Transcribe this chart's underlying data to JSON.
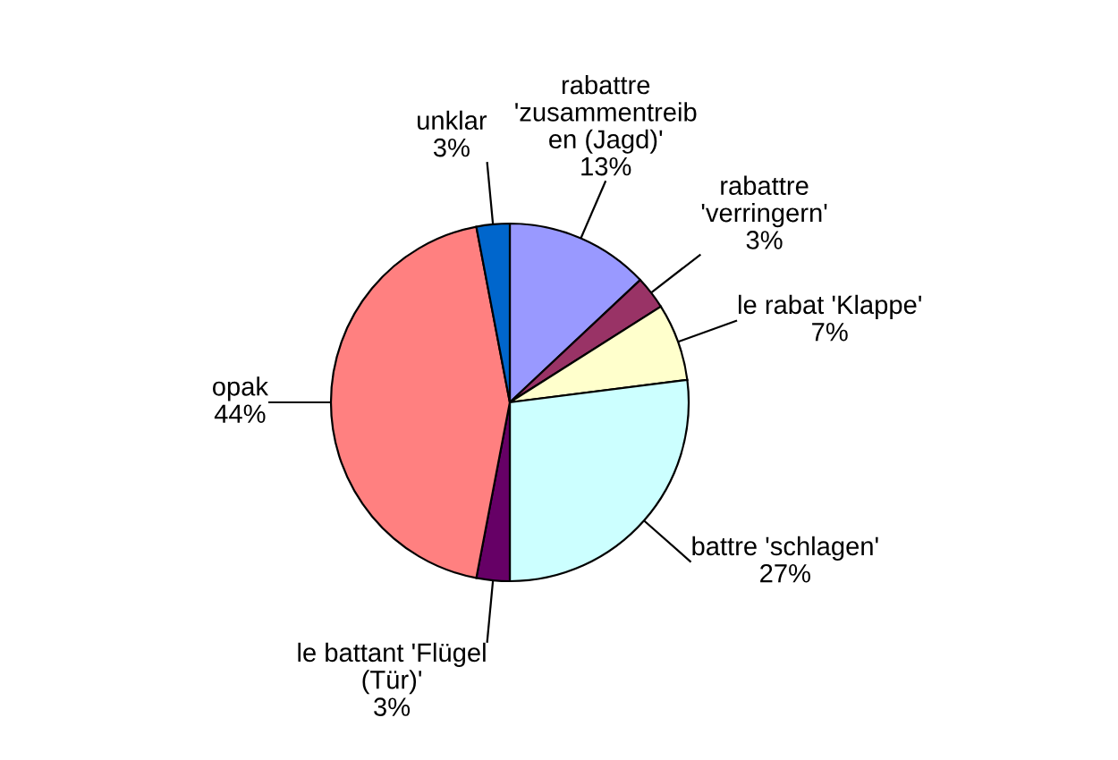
{
  "chart_data": {
    "type": "pie",
    "categories": [
      "rabattre\n'zusammentreib\nen (Jagd)'",
      "rabattre\n'verringern'",
      "le rabat 'Klappe'",
      "battre 'schlagen'",
      "le battant 'Flügel\n(Tür)'",
      "opak",
      "unklar"
    ],
    "values": [
      13,
      3,
      7,
      27,
      3,
      44,
      3
    ],
    "value_labels": [
      "13%",
      "3%",
      "7%",
      "27%",
      "3%",
      "44%",
      "3%"
    ],
    "colors": [
      "#9999ff",
      "#993366",
      "#ffffcc",
      "#ccffff",
      "#660066",
      "#ff8080",
      "#0066cc"
    ],
    "legend": false
  }
}
